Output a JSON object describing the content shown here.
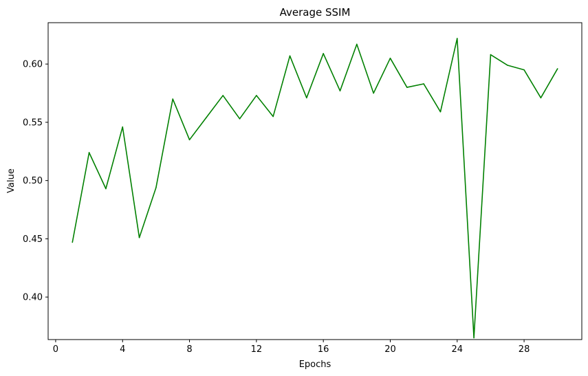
{
  "chart_data": {
    "type": "line",
    "title": "Average SSIM",
    "xlabel": "Epochs",
    "ylabel": "Value",
    "xlim": [
      -0.45,
      31.45
    ],
    "ylim": [
      0.3635,
      0.6355
    ],
    "xticks": [
      0,
      4,
      8,
      12,
      16,
      20,
      24,
      28
    ],
    "yticks": [
      0.4,
      0.45,
      0.5,
      0.55,
      0.6
    ],
    "grid": false,
    "legend": "none",
    "series": [
      {
        "color": "#008000",
        "x": [
          1,
          2,
          3,
          4,
          5,
          6,
          7,
          8,
          9,
          10,
          11,
          12,
          13,
          14,
          15,
          16,
          17,
          18,
          19,
          20,
          21,
          22,
          23,
          24,
          25,
          26,
          27,
          28,
          29,
          30
        ],
        "values": [
          0.447,
          0.524,
          0.493,
          0.546,
          0.451,
          0.494,
          0.57,
          0.535,
          0.554,
          0.573,
          0.553,
          0.573,
          0.555,
          0.607,
          0.571,
          0.609,
          0.577,
          0.617,
          0.575,
          0.605,
          0.58,
          0.583,
          0.559,
          0.622,
          0.365,
          0.608,
          0.599,
          0.595,
          0.571,
          0.596
        ]
      }
    ]
  }
}
